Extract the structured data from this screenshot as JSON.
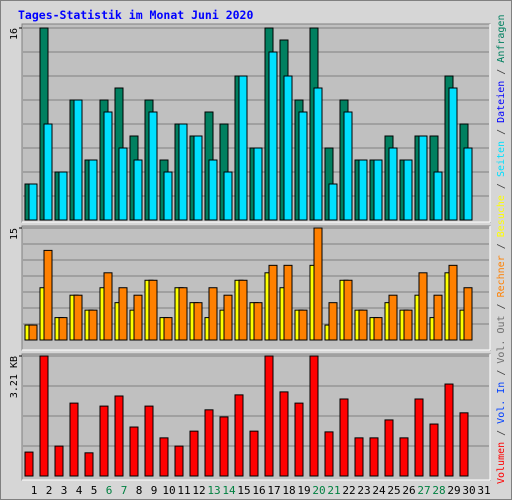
{
  "title": "Tages-Statistik im Monat Juni 2020",
  "legend_separator": "/",
  "chart_data": [
    {
      "type": "bar",
      "categories": [
        "1",
        "2",
        "3",
        "4",
        "5",
        "6",
        "7",
        "8",
        "9",
        "10",
        "11",
        "12",
        "13",
        "14",
        "15",
        "16",
        "17",
        "18",
        "19",
        "20",
        "21",
        "22",
        "23",
        "24",
        "25",
        "26",
        "27",
        "28",
        "29",
        "30",
        "31"
      ],
      "highlighted": [
        5,
        6,
        12,
        13,
        19,
        20,
        26,
        27
      ],
      "highlight_color": "#008040",
      "ylim": [
        0,
        16
      ],
      "yticks": [
        16
      ],
      "grid_divisions": 8,
      "series": [
        {
          "name": "Anfragen",
          "color": "#008060",
          "values": [
            3,
            16,
            4,
            10,
            5,
            10,
            11,
            7,
            10,
            5,
            8,
            7,
            9,
            8,
            12,
            6,
            16,
            15,
            10,
            16,
            6,
            10,
            5,
            5,
            7,
            5,
            7,
            7,
            12,
            8,
            0
          ]
        },
        {
          "name": "Dateien",
          "color": "#0000ff",
          "values": [
            3,
            8,
            4,
            10,
            5,
            9,
            6,
            5,
            9,
            4,
            8,
            7,
            5,
            4,
            12,
            6,
            14,
            12,
            9,
            11,
            3,
            9,
            5,
            5,
            6,
            5,
            7,
            4,
            11,
            6,
            0
          ]
        },
        {
          "name": "Seiten",
          "color": "#00e0ff",
          "values": [
            3,
            8,
            4,
            10,
            5,
            9,
            6,
            5,
            9,
            4,
            8,
            7,
            5,
            4,
            12,
            6,
            14,
            12,
            9,
            11,
            3,
            9,
            5,
            5,
            6,
            5,
            7,
            4,
            11,
            6,
            0
          ]
        }
      ]
    },
    {
      "type": "bar",
      "ylim": [
        0,
        15
      ],
      "yticks": [
        15
      ],
      "grid_divisions": 7,
      "series": [
        {
          "name": "Besuche",
          "color": "#ffff00",
          "values": [
            2,
            7,
            3,
            6,
            4,
            7,
            5,
            4,
            8,
            3,
            7,
            5,
            3,
            4,
            8,
            5,
            9,
            7,
            4,
            10,
            2,
            8,
            4,
            3,
            5,
            4,
            6,
            3,
            9,
            4,
            0
          ]
        },
        {
          "name": "Rechner",
          "color": "#ff8000",
          "values": [
            2,
            12,
            3,
            6,
            4,
            9,
            7,
            6,
            8,
            3,
            7,
            5,
            7,
            6,
            8,
            5,
            10,
            10,
            4,
            15,
            5,
            8,
            4,
            3,
            6,
            4,
            9,
            6,
            10,
            7,
            0
          ]
        }
      ]
    },
    {
      "type": "bar",
      "ylim": [
        0,
        3.21
      ],
      "yticks": [
        {
          "value": 3.21,
          "label": "3.21 KB"
        }
      ],
      "grid_divisions": 4,
      "series": [
        {
          "name": "Volumen",
          "color": "#ff0000",
          "values": [
            0.64,
            3.21,
            0.8,
            1.95,
            0.62,
            1.87,
            2.14,
            1.31,
            1.87,
            1.02,
            0.8,
            1.2,
            1.77,
            1.58,
            2.17,
            1.2,
            3.21,
            2.25,
            1.95,
            3.21,
            1.18,
            2.06,
            1.02,
            1.02,
            1.5,
            1.02,
            2.06,
            1.39,
            2.46,
            1.69,
            0
          ]
        }
      ],
      "legend_extra": [
        {
          "name": "Vol. In",
          "color": "#0040ff"
        },
        {
          "name": "Vol. Out",
          "color": "#707070"
        }
      ]
    }
  ]
}
